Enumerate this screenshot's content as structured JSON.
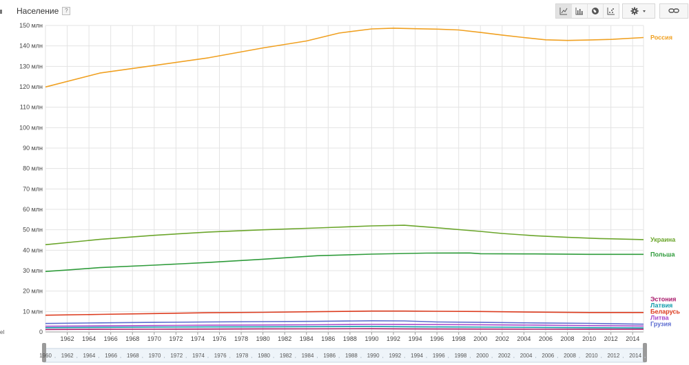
{
  "title": "Население",
  "help_label": "?",
  "colors": {
    "grid": "#e3e3e3",
    "text": "#444444",
    "axis": "#888888"
  },
  "toolbar": {
    "chart_types": [
      {
        "name": "line-chart-icon",
        "active": true
      },
      {
        "name": "bar-chart-icon",
        "active": false
      },
      {
        "name": "map-globe-icon",
        "active": false
      },
      {
        "name": "scatter-chart-icon",
        "active": false
      }
    ],
    "settings": "gear-icon",
    "link": "link-icon"
  },
  "chart_data": {
    "type": "line",
    "title": "Население",
    "ylabel": "",
    "xlabel": "",
    "ylim": [
      0,
      150000000
    ],
    "xlim": [
      1960,
      2015
    ],
    "grid": true,
    "legend": "right-end-labels",
    "y_ticks": [
      {
        "v": 0,
        "label": "0"
      },
      {
        "v": 10000000,
        "label": "10 млн"
      },
      {
        "v": 20000000,
        "label": "20 млн"
      },
      {
        "v": 30000000,
        "label": "30 млн"
      },
      {
        "v": 40000000,
        "label": "40 млн"
      },
      {
        "v": 50000000,
        "label": "50 млн"
      },
      {
        "v": 60000000,
        "label": "60 млн"
      },
      {
        "v": 70000000,
        "label": "70 млн"
      },
      {
        "v": 80000000,
        "label": "80 млн"
      },
      {
        "v": 90000000,
        "label": "90 млн"
      },
      {
        "v": 100000000,
        "label": "100 млн"
      },
      {
        "v": 110000000,
        "label": "110 млн"
      },
      {
        "v": 120000000,
        "label": "120 млн"
      },
      {
        "v": 130000000,
        "label": "130 млн"
      },
      {
        "v": 140000000,
        "label": "140 млн"
      },
      {
        "v": 150000000,
        "label": "150 млн"
      }
    ],
    "x_ticks": [
      "1962",
      "1964",
      "1966",
      "1968",
      "1970",
      "1972",
      "1974",
      "1976",
      "1978",
      "1980",
      "1982",
      "1984",
      "1986",
      "1988",
      "1990",
      "1992",
      "1994",
      "1996",
      "1998",
      "2000",
      "2002",
      "2004",
      "2006",
      "2008",
      "2010",
      "2012",
      "2014"
    ],
    "timeline_ticks": [
      "1960",
      "1962",
      "1964",
      "1966",
      "1968",
      "1970",
      "1972",
      "1974",
      "1976",
      "1978",
      "1980",
      "1982",
      "1984",
      "1986",
      "1988",
      "1990",
      "1992",
      "1994",
      "1996",
      "1998",
      "2000",
      "2002",
      "2004",
      "2006",
      "2008",
      "2010",
      "2012",
      "2014"
    ],
    "series": [
      {
        "name": "Россия",
        "color": "#f0a020",
        "points": [
          [
            1960,
            119900000
          ],
          [
            1965,
            126700000
          ],
          [
            1970,
            130400000
          ],
          [
            1975,
            134200000
          ],
          [
            1980,
            139000000
          ],
          [
            1984,
            142400000
          ],
          [
            1987,
            146300000
          ],
          [
            1990,
            148300000
          ],
          [
            1992,
            148700000
          ],
          [
            1994,
            148400000
          ],
          [
            1996,
            148200000
          ],
          [
            1998,
            147800000
          ],
          [
            2000,
            146600000
          ],
          [
            2002,
            145300000
          ],
          [
            2004,
            144100000
          ],
          [
            2006,
            143000000
          ],
          [
            2008,
            142700000
          ],
          [
            2010,
            142900000
          ],
          [
            2012,
            143200000
          ],
          [
            2015,
            144100000
          ]
        ]
      },
      {
        "name": "Украина",
        "color": "#6aa52a",
        "points": [
          [
            1960,
            42700000
          ],
          [
            1965,
            45300000
          ],
          [
            1970,
            47300000
          ],
          [
            1975,
            48900000
          ],
          [
            1980,
            50000000
          ],
          [
            1985,
            50900000
          ],
          [
            1990,
            51900000
          ],
          [
            1993,
            52200000
          ],
          [
            1996,
            51000000
          ],
          [
            2000,
            49200000
          ],
          [
            2002,
            48200000
          ],
          [
            2005,
            47100000
          ],
          [
            2008,
            46300000
          ],
          [
            2011,
            45700000
          ],
          [
            2015,
            45200000
          ]
        ]
      },
      {
        "name": "Польша",
        "color": "#2e9b3a",
        "points": [
          [
            1960,
            29600000
          ],
          [
            1962,
            30300000
          ],
          [
            1965,
            31500000
          ],
          [
            1970,
            32700000
          ],
          [
            1975,
            34000000
          ],
          [
            1980,
            35600000
          ],
          [
            1985,
            37300000
          ],
          [
            1990,
            38100000
          ],
          [
            1995,
            38600000
          ],
          [
            1999,
            38650000
          ],
          [
            2000,
            38300000
          ],
          [
            2005,
            38200000
          ],
          [
            2010,
            38000000
          ],
          [
            2015,
            38000000
          ]
        ]
      },
      {
        "name": "Беларусь",
        "color": "#dc3b1e",
        "points": [
          [
            1960,
            8200000
          ],
          [
            1965,
            8600000
          ],
          [
            1970,
            9000000
          ],
          [
            1975,
            9400000
          ],
          [
            1980,
            9600000
          ],
          [
            1985,
            9900000
          ],
          [
            1990,
            10200000
          ],
          [
            1993,
            10200000
          ],
          [
            1996,
            10100000
          ],
          [
            2000,
            10000000
          ],
          [
            2005,
            9700000
          ],
          [
            2010,
            9500000
          ],
          [
            2015,
            9500000
          ]
        ]
      },
      {
        "name": "Грузия",
        "color": "#5b6bd0",
        "points": [
          [
            1960,
            4150000
          ],
          [
            1965,
            4450000
          ],
          [
            1970,
            4700000
          ],
          [
            1975,
            4900000
          ],
          [
            1980,
            5050000
          ],
          [
            1985,
            5200000
          ],
          [
            1990,
            5450000
          ],
          [
            1993,
            5400000
          ],
          [
            1996,
            4900000
          ],
          [
            2000,
            4700000
          ],
          [
            2005,
            4400000
          ],
          [
            2010,
            4200000
          ],
          [
            2015,
            3800000
          ]
        ]
      },
      {
        "name": "Литва",
        "color": "#a64acb",
        "points": [
          [
            1960,
            2800000
          ],
          [
            1965,
            2950000
          ],
          [
            1970,
            3150000
          ],
          [
            1975,
            3300000
          ],
          [
            1980,
            3400000
          ],
          [
            1985,
            3550000
          ],
          [
            1990,
            3700000
          ],
          [
            1993,
            3650000
          ],
          [
            1996,
            3600000
          ],
          [
            2000,
            3500000
          ],
          [
            2005,
            3350000
          ],
          [
            2010,
            3100000
          ],
          [
            2015,
            2900000
          ]
        ]
      },
      {
        "name": "Латвия",
        "color": "#0f9bab",
        "points": [
          [
            1960,
            2100000
          ],
          [
            1965,
            2250000
          ],
          [
            1970,
            2350000
          ],
          [
            1975,
            2450000
          ],
          [
            1980,
            2500000
          ],
          [
            1985,
            2600000
          ],
          [
            1990,
            2650000
          ],
          [
            1994,
            2500000
          ],
          [
            2000,
            2350000
          ],
          [
            2005,
            2250000
          ],
          [
            2010,
            2100000
          ],
          [
            2015,
            1950000
          ]
        ]
      },
      {
        "name": "Эстония",
        "color": "#a8186a",
        "points": [
          [
            1960,
            1200000
          ],
          [
            1965,
            1300000
          ],
          [
            1970,
            1360000
          ],
          [
            1975,
            1420000
          ],
          [
            1980,
            1470000
          ],
          [
            1985,
            1520000
          ],
          [
            1990,
            1570000
          ],
          [
            1993,
            1500000
          ],
          [
            2000,
            1400000
          ],
          [
            2005,
            1350000
          ],
          [
            2010,
            1330000
          ],
          [
            2015,
            1310000
          ]
        ]
      }
    ]
  }
}
